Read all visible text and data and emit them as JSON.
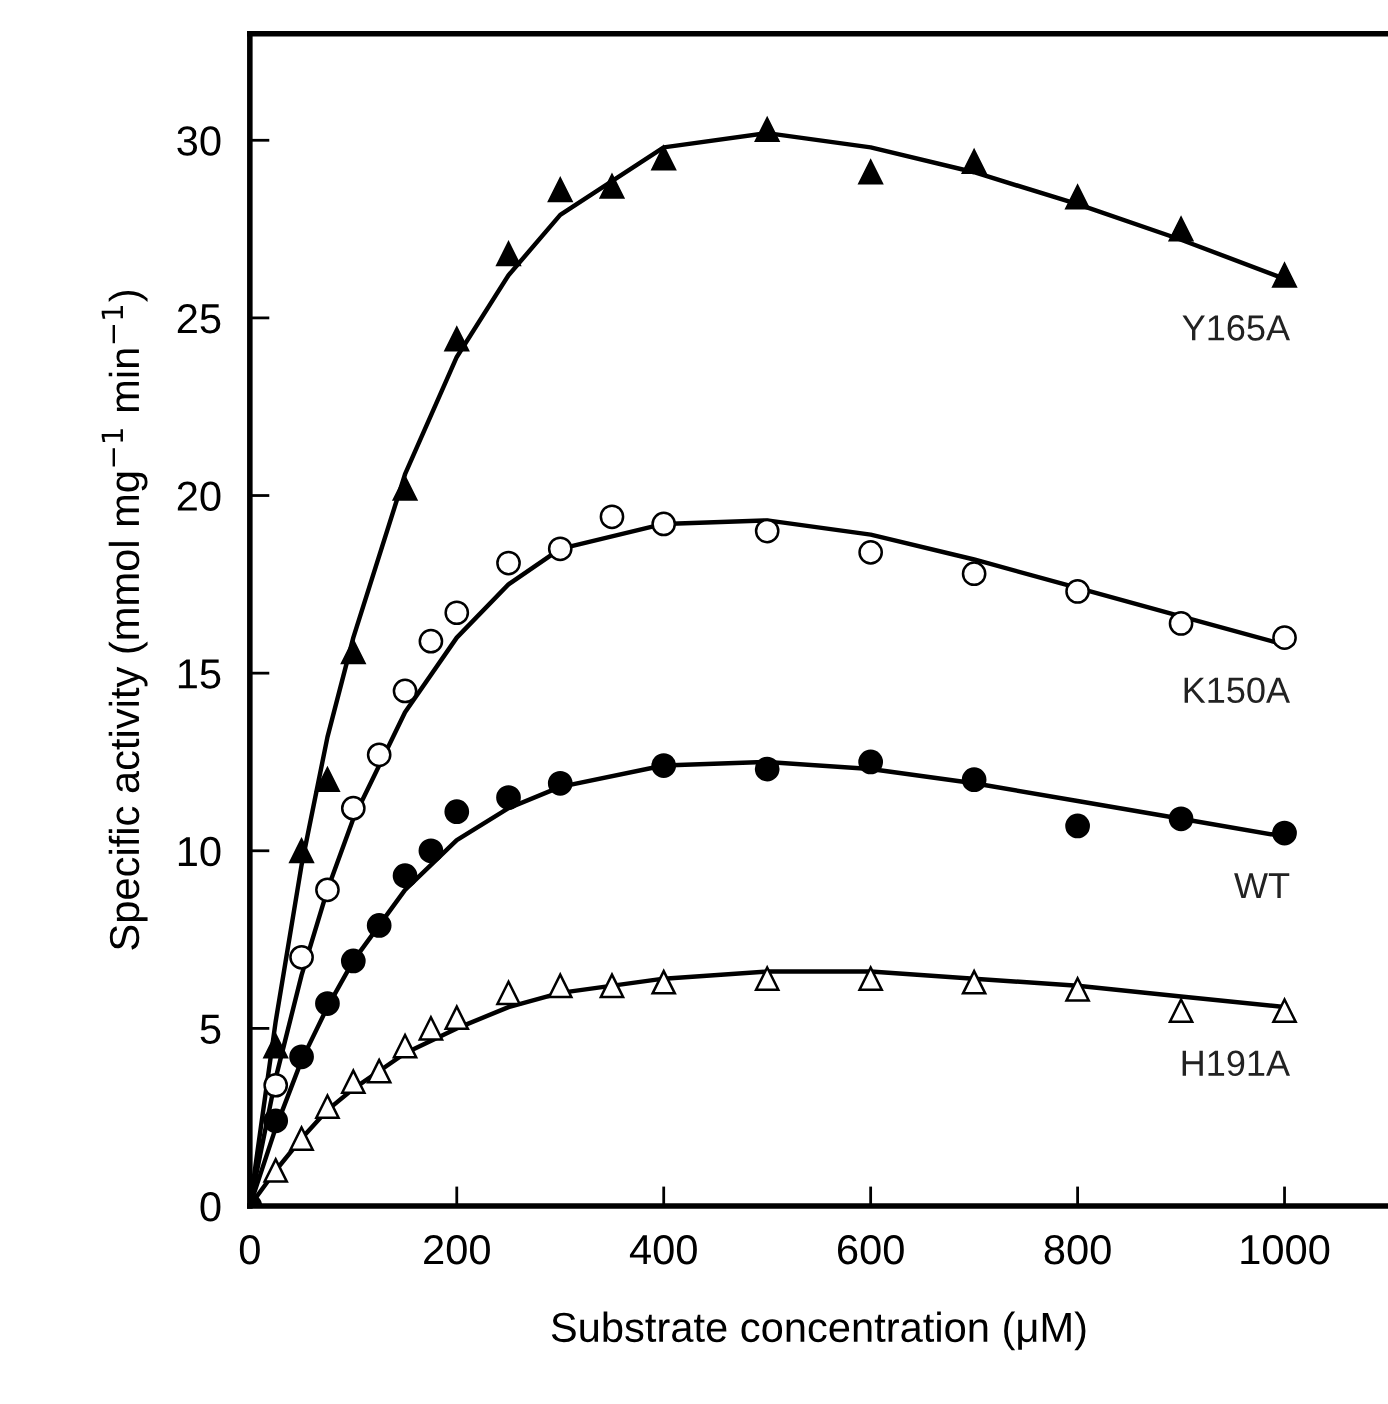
{
  "chart_data": {
    "type": "scatter",
    "xlabel": "Substrate concentration (μM)",
    "ylabel": "Specific activity (mmol mg$^{−1}$ min$^{−1}$)",
    "xlim": [
      0,
      1100
    ],
    "xticks": [
      0,
      200,
      400,
      600,
      800,
      1000
    ],
    "ylim": [
      0,
      33
    ],
    "yticks": [
      0,
      5,
      10,
      15,
      20,
      25,
      30
    ],
    "grid": false,
    "series": [
      {
        "name": "Y165A",
        "color": "#000000",
        "marker": "triangle",
        "x": [
          25,
          50,
          75,
          100,
          150,
          200,
          250,
          300,
          350,
          400,
          500,
          600,
          700,
          800,
          900,
          1000
        ],
        "values": [
          4.5,
          10,
          12,
          15.6,
          20.2,
          24.4,
          26.8,
          28.6,
          28.7,
          29.5,
          30.3,
          29.1,
          29.4,
          28.4,
          27.5,
          26.2
        ]
      },
      {
        "name": "K150A",
        "color": "#ffffff",
        "marker": "circle",
        "x": [
          25,
          50,
          75,
          100,
          125,
          150,
          175,
          200,
          250,
          300,
          350,
          400,
          500,
          600,
          700,
          800,
          900,
          1000
        ],
        "values": [
          3.4,
          7.0,
          8.9,
          11.2,
          12.7,
          14.5,
          15.9,
          16.7,
          18.1,
          18.5,
          19.4,
          19.2,
          19.0,
          18.4,
          17.8,
          17.3,
          16.4,
          16.0
        ]
      },
      {
        "name": "WT",
        "color": "#000000",
        "marker": "circle",
        "x": [
          0,
          25,
          50,
          75,
          100,
          125,
          150,
          175,
          200,
          250,
          300,
          400,
          500,
          600,
          700,
          800,
          900,
          1000
        ],
        "values": [
          0,
          2.4,
          4.2,
          5.7,
          6.9,
          7.9,
          9.3,
          10.0,
          11.1,
          11.5,
          11.9,
          12.4,
          12.3,
          12.5,
          12.0,
          10.7,
          10.9,
          10.5
        ]
      },
      {
        "name": "H191A",
        "color": "#ffffff",
        "marker": "triangle",
        "x": [
          25,
          50,
          75,
          100,
          125,
          150,
          175,
          200,
          250,
          300,
          350,
          400,
          500,
          600,
          700,
          800,
          900,
          1000
        ],
        "values": [
          1.0,
          1.9,
          2.8,
          3.5,
          3.8,
          4.5,
          5.0,
          5.3,
          6.0,
          6.2,
          6.2,
          6.3,
          6.4,
          6.4,
          6.3,
          6.1,
          5.5,
          5.5
        ]
      },
      {
        "type": "line",
        "color": "#000000",
        "x": [
          0,
          25,
          50,
          75,
          100,
          150,
          200,
          250,
          300,
          400,
          500,
          600,
          700,
          800,
          900,
          1000
        ],
        "values": [
          0,
          5.2,
          9.6,
          13.2,
          16.0,
          20.6,
          23.9,
          26.2,
          27.9,
          29.8,
          30.2,
          29.8,
          29.1,
          28.2,
          27.2,
          26.1
        ]
      },
      {
        "type": "line",
        "color": "#000000",
        "x": [
          0,
          25,
          50,
          75,
          100,
          150,
          200,
          250,
          300,
          400,
          500,
          600,
          700,
          800,
          900,
          1000
        ],
        "values": [
          0,
          3.6,
          6.5,
          8.9,
          10.9,
          13.9,
          16.0,
          17.5,
          18.5,
          19.2,
          19.3,
          18.9,
          18.2,
          17.4,
          16.6,
          15.8
        ]
      },
      {
        "type": "line",
        "color": "#000000",
        "x": [
          0,
          25,
          50,
          75,
          100,
          150,
          200,
          250,
          300,
          400,
          500,
          600,
          700,
          800,
          900,
          1000
        ],
        "values": [
          0,
          2.2,
          4.1,
          5.6,
          6.9,
          8.9,
          10.3,
          11.2,
          11.8,
          12.4,
          12.5,
          12.3,
          11.9,
          11.4,
          10.9,
          10.4
        ]
      },
      {
        "type": "line",
        "color": "#000000",
        "x": [
          0,
          25,
          50,
          75,
          100,
          150,
          200,
          250,
          300,
          400,
          500,
          600,
          700,
          800,
          900,
          1000
        ],
        "values": [
          0,
          1.0,
          1.9,
          2.7,
          3.3,
          4.3,
          5.0,
          5.6,
          6.0,
          6.4,
          6.6,
          6.6,
          6.4,
          6.2,
          5.9,
          5.6
        ]
      }
    ]
  }
}
